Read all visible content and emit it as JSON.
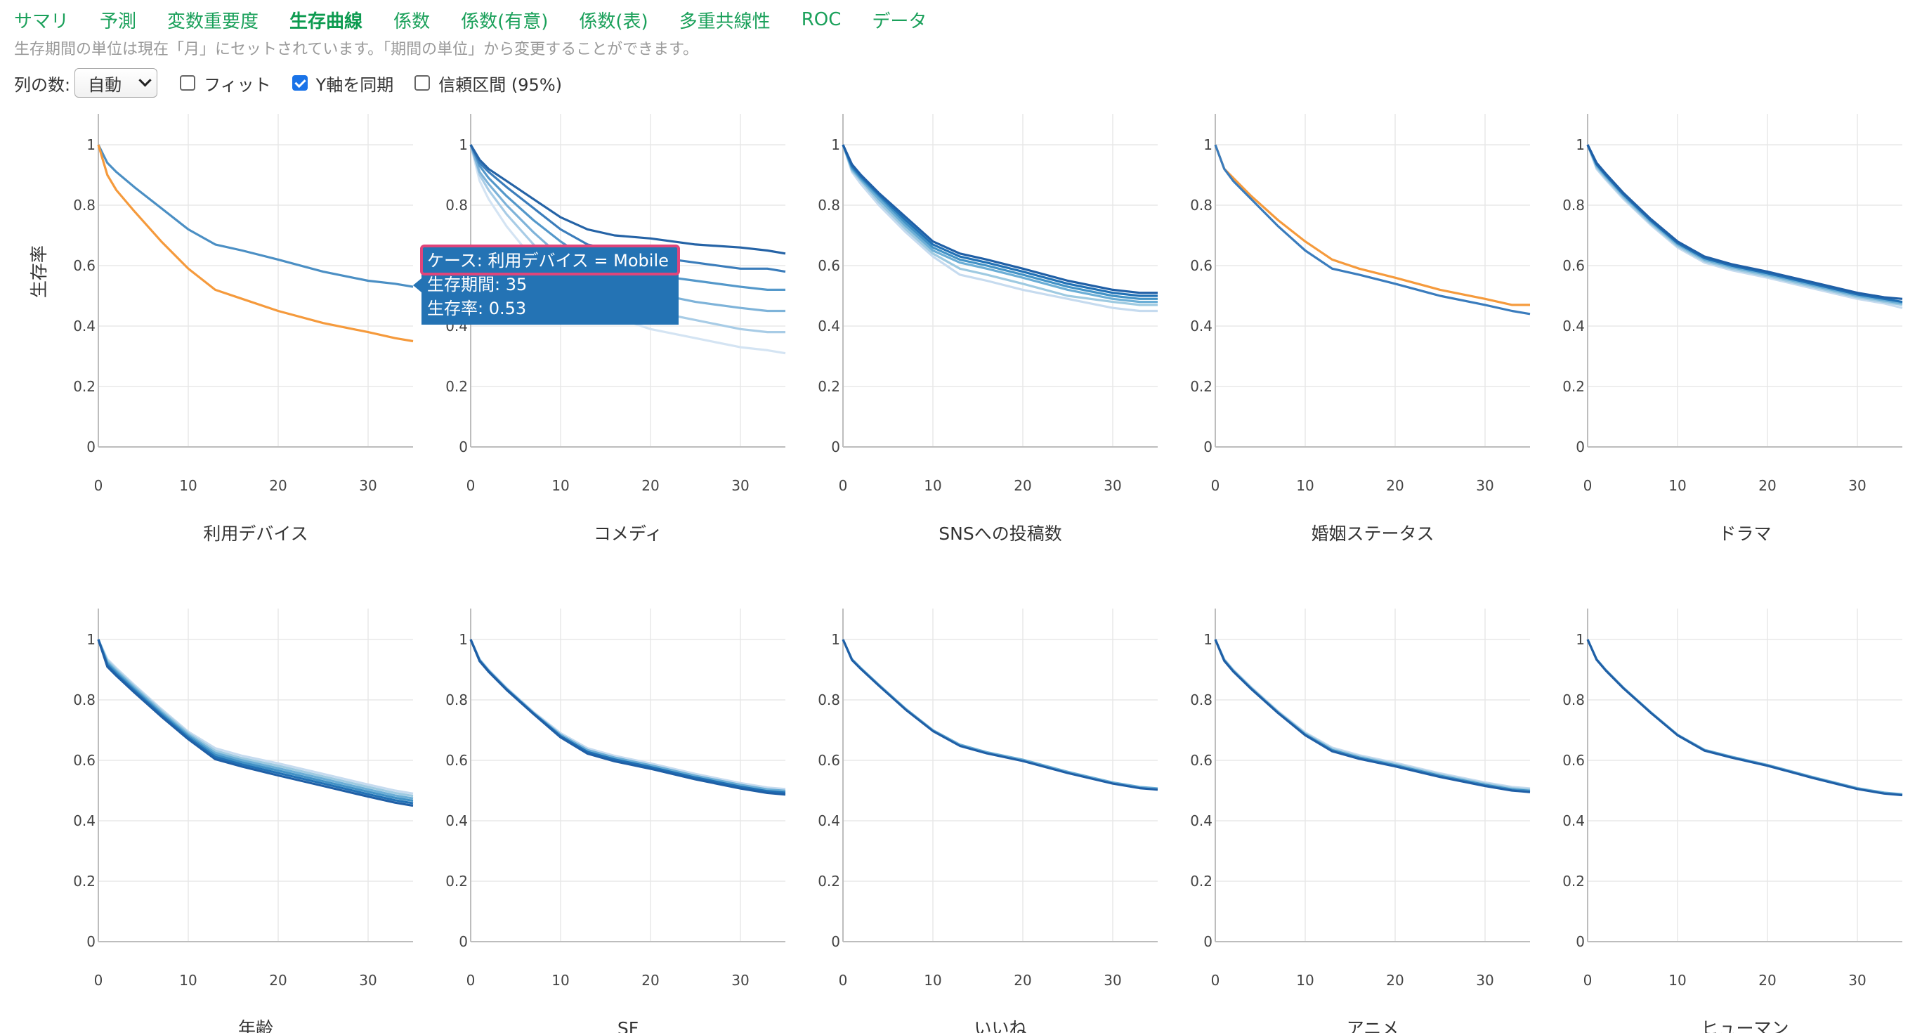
{
  "tabs": [
    {
      "label": "サマリ",
      "active": false
    },
    {
      "label": "予測",
      "active": false
    },
    {
      "label": "変数重要度",
      "active": false
    },
    {
      "label": "生存曲線",
      "active": true
    },
    {
      "label": "係数",
      "active": false
    },
    {
      "label": "係数(有意)",
      "active": false
    },
    {
      "label": "係数(表)",
      "active": false
    },
    {
      "label": "多重共線性",
      "active": false
    },
    {
      "label": "ROC",
      "active": false
    },
    {
      "label": "データ",
      "active": false
    }
  ],
  "info_text": "生存期間の単位は現在「月」にセットされています。「期間の単位」から変更することができます。",
  "controls": {
    "columns_label": "列の数:",
    "columns_value": "自動",
    "fit_label": "フィット",
    "fit_checked": false,
    "sync_y_label": "Y軸を同期",
    "sync_y_checked": true,
    "ci_label": "信頼区間 (95%)",
    "ci_checked": false
  },
  "colors": {
    "tab": "#1aa05a",
    "orange": "#f59a3c",
    "blue_dark": "#1f5fa6",
    "blue_light": "#c6dbef",
    "tooltip_bg": "#2473b4",
    "tooltip_border": "#e0457b",
    "grid": "#e8e8e8"
  },
  "tooltip": {
    "line1": "ケース: 利用デバイス = Mobile",
    "line2": "生存期間: 35",
    "line3": "生存率: 0.53"
  },
  "chart_data": [
    {
      "type": "line",
      "title": "利用デバイス",
      "ylabel": "生存率",
      "xlim": [
        0,
        35
      ],
      "ylim": [
        0,
        1
      ],
      "x": [
        0,
        1,
        2,
        4,
        7,
        10,
        13,
        16,
        20,
        25,
        30,
        33,
        35
      ],
      "series": [
        {
          "color": "#4b8fc4",
          "values": [
            1,
            0.94,
            0.91,
            0.86,
            0.79,
            0.72,
            0.67,
            0.65,
            0.62,
            0.58,
            0.55,
            0.54,
            0.53
          ]
        },
        {
          "color": "#f59a3c",
          "values": [
            1,
            0.9,
            0.85,
            0.78,
            0.68,
            0.59,
            0.52,
            0.49,
            0.45,
            0.41,
            0.38,
            0.36,
            0.35
          ]
        }
      ]
    },
    {
      "type": "line",
      "title": "コメディ",
      "xlim": [
        0,
        35
      ],
      "ylim": [
        0,
        1
      ],
      "x": [
        0,
        1,
        2,
        4,
        7,
        10,
        13,
        16,
        20,
        25,
        30,
        33,
        35
      ],
      "series": [
        {
          "color": "#d4e4f3",
          "values": [
            1,
            0.88,
            0.82,
            0.73,
            0.62,
            0.53,
            0.46,
            0.43,
            0.39,
            0.36,
            0.33,
            0.32,
            0.31
          ]
        },
        {
          "color": "#a8cce6",
          "values": [
            1,
            0.9,
            0.85,
            0.77,
            0.67,
            0.58,
            0.51,
            0.48,
            0.45,
            0.42,
            0.39,
            0.38,
            0.38
          ]
        },
        {
          "color": "#7eb3d9",
          "values": [
            1,
            0.91,
            0.87,
            0.8,
            0.71,
            0.63,
            0.57,
            0.54,
            0.51,
            0.48,
            0.46,
            0.45,
            0.45
          ]
        },
        {
          "color": "#5498ca",
          "values": [
            1,
            0.93,
            0.89,
            0.83,
            0.75,
            0.68,
            0.62,
            0.6,
            0.57,
            0.55,
            0.53,
            0.52,
            0.52
          ]
        },
        {
          "color": "#3b7dbb",
          "values": [
            1,
            0.94,
            0.91,
            0.86,
            0.79,
            0.72,
            0.67,
            0.65,
            0.63,
            0.61,
            0.59,
            0.59,
            0.58
          ]
        },
        {
          "color": "#2563a6",
          "values": [
            1,
            0.95,
            0.92,
            0.88,
            0.82,
            0.76,
            0.72,
            0.7,
            0.69,
            0.67,
            0.66,
            0.65,
            0.64
          ]
        }
      ]
    },
    {
      "type": "line",
      "title": "SNSへの投稿数",
      "xlim": [
        0,
        35
      ],
      "ylim": [
        0,
        1
      ],
      "x": [
        0,
        1,
        2,
        4,
        7,
        10,
        13,
        16,
        20,
        25,
        30,
        33,
        35
      ],
      "series": [
        {
          "color": "#c6dbef",
          "values": [
            1,
            0.91,
            0.87,
            0.8,
            0.71,
            0.63,
            0.57,
            0.55,
            0.52,
            0.49,
            0.46,
            0.45,
            0.45
          ]
        },
        {
          "color": "#9ecae1",
          "values": [
            1,
            0.915,
            0.88,
            0.81,
            0.72,
            0.64,
            0.59,
            0.57,
            0.54,
            0.5,
            0.48,
            0.47,
            0.47
          ]
        },
        {
          "color": "#6baed6",
          "values": [
            1,
            0.92,
            0.885,
            0.82,
            0.73,
            0.65,
            0.61,
            0.59,
            0.56,
            0.52,
            0.49,
            0.48,
            0.48
          ]
        },
        {
          "color": "#4292c6",
          "values": [
            1,
            0.925,
            0.89,
            0.83,
            0.74,
            0.66,
            0.62,
            0.6,
            0.57,
            0.53,
            0.5,
            0.49,
            0.49
          ]
        },
        {
          "color": "#2171b5",
          "values": [
            1,
            0.93,
            0.895,
            0.835,
            0.75,
            0.67,
            0.63,
            0.61,
            0.58,
            0.54,
            0.51,
            0.5,
            0.5
          ]
        },
        {
          "color": "#1f5fa6",
          "values": [
            1,
            0.935,
            0.9,
            0.84,
            0.76,
            0.68,
            0.64,
            0.62,
            0.59,
            0.55,
            0.52,
            0.51,
            0.51
          ]
        }
      ]
    },
    {
      "type": "line",
      "title": "婚姻ステータス",
      "xlim": [
        0,
        35
      ],
      "ylim": [
        0,
        1
      ],
      "x": [
        0,
        1,
        2,
        4,
        7,
        10,
        13,
        16,
        20,
        25,
        30,
        33,
        35
      ],
      "series": [
        {
          "color": "#f59a3c",
          "values": [
            1,
            0.92,
            0.89,
            0.83,
            0.75,
            0.68,
            0.62,
            0.59,
            0.56,
            0.52,
            0.49,
            0.47,
            0.47
          ]
        },
        {
          "color": "#3a7cbd",
          "values": [
            1,
            0.92,
            0.88,
            0.82,
            0.73,
            0.65,
            0.59,
            0.57,
            0.54,
            0.5,
            0.47,
            0.45,
            0.44
          ]
        }
      ]
    },
    {
      "type": "line",
      "title": "ドラマ",
      "xlim": [
        0,
        35
      ],
      "ylim": [
        0,
        1
      ],
      "x": [
        0,
        1,
        2,
        4,
        7,
        10,
        13,
        16,
        20,
        25,
        30,
        33,
        35
      ],
      "series": [
        {
          "color": "#c6dbef",
          "values": [
            1,
            0.92,
            0.885,
            0.82,
            0.735,
            0.66,
            0.61,
            0.585,
            0.56,
            0.525,
            0.49,
            0.475,
            0.46
          ]
        },
        {
          "color": "#9ecae1",
          "values": [
            1,
            0.925,
            0.89,
            0.825,
            0.74,
            0.665,
            0.615,
            0.59,
            0.565,
            0.53,
            0.495,
            0.48,
            0.47
          ]
        },
        {
          "color": "#6baed6",
          "values": [
            1,
            0.93,
            0.895,
            0.83,
            0.745,
            0.67,
            0.62,
            0.595,
            0.57,
            0.535,
            0.5,
            0.485,
            0.475
          ]
        },
        {
          "color": "#2171b5",
          "values": [
            1,
            0.935,
            0.9,
            0.835,
            0.75,
            0.675,
            0.625,
            0.6,
            0.575,
            0.54,
            0.505,
            0.49,
            0.48
          ]
        },
        {
          "color": "#1f5fa6",
          "values": [
            1,
            0.94,
            0.905,
            0.84,
            0.755,
            0.68,
            0.63,
            0.605,
            0.58,
            0.545,
            0.51,
            0.495,
            0.49
          ]
        }
      ]
    },
    {
      "type": "line",
      "title": "年齢",
      "xlim": [
        0,
        35
      ],
      "ylim": [
        0,
        1
      ],
      "x": [
        0,
        1,
        2,
        4,
        7,
        10,
        13,
        16,
        20,
        25,
        30,
        33,
        35
      ],
      "series": [
        {
          "color": "#c6dbef",
          "values": [
            1,
            0.935,
            0.905,
            0.85,
            0.77,
            0.695,
            0.64,
            0.615,
            0.59,
            0.555,
            0.52,
            0.5,
            0.49
          ]
        },
        {
          "color": "#9ecae1",
          "values": [
            1,
            0.93,
            0.9,
            0.845,
            0.765,
            0.69,
            0.632,
            0.607,
            0.582,
            0.547,
            0.512,
            0.492,
            0.482
          ]
        },
        {
          "color": "#6baed6",
          "values": [
            1,
            0.925,
            0.895,
            0.84,
            0.76,
            0.685,
            0.625,
            0.6,
            0.574,
            0.539,
            0.504,
            0.484,
            0.474
          ]
        },
        {
          "color": "#4292c6",
          "values": [
            1,
            0.92,
            0.89,
            0.835,
            0.755,
            0.68,
            0.618,
            0.593,
            0.566,
            0.531,
            0.496,
            0.476,
            0.466
          ]
        },
        {
          "color": "#2171b5",
          "values": [
            1,
            0.915,
            0.885,
            0.83,
            0.75,
            0.675,
            0.611,
            0.586,
            0.558,
            0.523,
            0.488,
            0.468,
            0.458
          ]
        },
        {
          "color": "#1f5fa6",
          "values": [
            1,
            0.91,
            0.88,
            0.825,
            0.745,
            0.67,
            0.604,
            0.579,
            0.55,
            0.515,
            0.48,
            0.46,
            0.45
          ]
        }
      ]
    },
    {
      "type": "line",
      "title": "SF",
      "xlim": [
        0,
        35
      ],
      "ylim": [
        0,
        1
      ],
      "x": [
        0,
        1,
        2,
        4,
        7,
        10,
        13,
        16,
        20,
        25,
        30,
        33,
        35
      ],
      "series": [
        {
          "color": "#c6dbef",
          "values": [
            1,
            0.935,
            0.9,
            0.84,
            0.76,
            0.69,
            0.64,
            0.615,
            0.59,
            0.555,
            0.525,
            0.51,
            0.505
          ]
        },
        {
          "color": "#6baed6",
          "values": [
            1,
            0.932,
            0.897,
            0.837,
            0.757,
            0.685,
            0.634,
            0.609,
            0.584,
            0.549,
            0.519,
            0.504,
            0.499
          ]
        },
        {
          "color": "#2171b5",
          "values": [
            1,
            0.93,
            0.895,
            0.835,
            0.755,
            0.68,
            0.628,
            0.603,
            0.578,
            0.543,
            0.513,
            0.498,
            0.493
          ]
        },
        {
          "color": "#1f5fa6",
          "values": [
            1,
            0.928,
            0.893,
            0.833,
            0.753,
            0.676,
            0.622,
            0.597,
            0.572,
            0.537,
            0.507,
            0.492,
            0.487
          ]
        }
      ]
    },
    {
      "type": "line",
      "title": "いいね",
      "xlim": [
        0,
        35
      ],
      "ylim": [
        0,
        1
      ],
      "x": [
        0,
        1,
        2,
        4,
        7,
        10,
        13,
        16,
        20,
        25,
        30,
        33,
        35
      ],
      "series": [
        {
          "color": "#6baed6",
          "values": [
            1,
            0.935,
            0.905,
            0.85,
            0.77,
            0.7,
            0.652,
            0.627,
            0.602,
            0.562,
            0.527,
            0.512,
            0.507
          ]
        },
        {
          "color": "#1f5fa6",
          "values": [
            1,
            0.932,
            0.902,
            0.847,
            0.767,
            0.697,
            0.648,
            0.623,
            0.598,
            0.558,
            0.523,
            0.508,
            0.503
          ]
        }
      ]
    },
    {
      "type": "line",
      "title": "アニメ",
      "xlim": [
        0,
        35
      ],
      "ylim": [
        0,
        1
      ],
      "x": [
        0,
        1,
        2,
        4,
        7,
        10,
        13,
        16,
        20,
        25,
        30,
        33,
        35
      ],
      "series": [
        {
          "color": "#c6dbef",
          "values": [
            1,
            0.935,
            0.9,
            0.842,
            0.762,
            0.692,
            0.642,
            0.617,
            0.592,
            0.557,
            0.527,
            0.512,
            0.507
          ]
        },
        {
          "color": "#9ecae1",
          "values": [
            1,
            0.933,
            0.898,
            0.84,
            0.76,
            0.689,
            0.638,
            0.613,
            0.588,
            0.553,
            0.523,
            0.508,
            0.503
          ]
        },
        {
          "color": "#4292c6",
          "values": [
            1,
            0.931,
            0.896,
            0.838,
            0.758,
            0.686,
            0.634,
            0.609,
            0.584,
            0.549,
            0.519,
            0.504,
            0.499
          ]
        },
        {
          "color": "#1f5fa6",
          "values": [
            1,
            0.929,
            0.894,
            0.836,
            0.756,
            0.683,
            0.63,
            0.605,
            0.58,
            0.545,
            0.515,
            0.5,
            0.495
          ]
        }
      ]
    },
    {
      "type": "line",
      "title": "ヒューマン",
      "xlim": [
        0,
        35
      ],
      "ylim": [
        0,
        1
      ],
      "x": [
        0,
        1,
        2,
        4,
        7,
        10,
        13,
        16,
        20,
        25,
        30,
        33,
        35
      ],
      "series": [
        {
          "color": "#6baed6",
          "values": [
            1,
            0.935,
            0.9,
            0.84,
            0.76,
            0.685,
            0.635,
            0.612,
            0.585,
            0.545,
            0.508,
            0.493,
            0.488
          ]
        },
        {
          "color": "#1f5fa6",
          "values": [
            1,
            0.933,
            0.898,
            0.838,
            0.758,
            0.683,
            0.632,
            0.609,
            0.582,
            0.542,
            0.505,
            0.49,
            0.485
          ]
        }
      ]
    }
  ]
}
